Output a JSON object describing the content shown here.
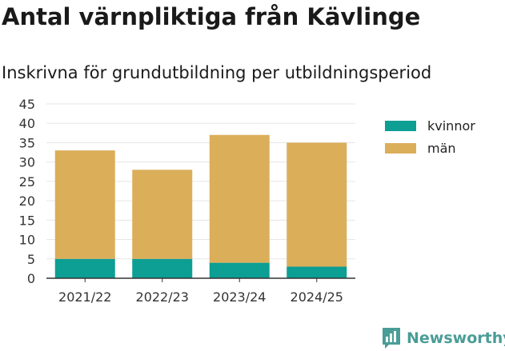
{
  "header": {
    "title": "Antal värnpliktiga från Kävlinge",
    "subtitle": "Inskrivna för grundutbildning per utbildningsperiod"
  },
  "chart_data": {
    "type": "bar",
    "stacked": true,
    "categories": [
      "2021/22",
      "2022/23",
      "2023/24",
      "2024/25"
    ],
    "series": [
      {
        "name": "kvinnor",
        "values": [
          5,
          5,
          4,
          3
        ],
        "color": "#0d9e94"
      },
      {
        "name": "män",
        "values": [
          28,
          23,
          33,
          32
        ],
        "color": "#dbae5a"
      }
    ],
    "yticks": [
      0,
      5,
      10,
      15,
      20,
      25,
      30,
      35,
      40,
      45
    ],
    "ylim": [
      0,
      45
    ],
    "grid": true,
    "legend": "right"
  },
  "branding": {
    "logo_text": "Newsworthy",
    "logo_icon": "bar-chart-speech-bubble-icon",
    "color": "#4a9d96"
  }
}
